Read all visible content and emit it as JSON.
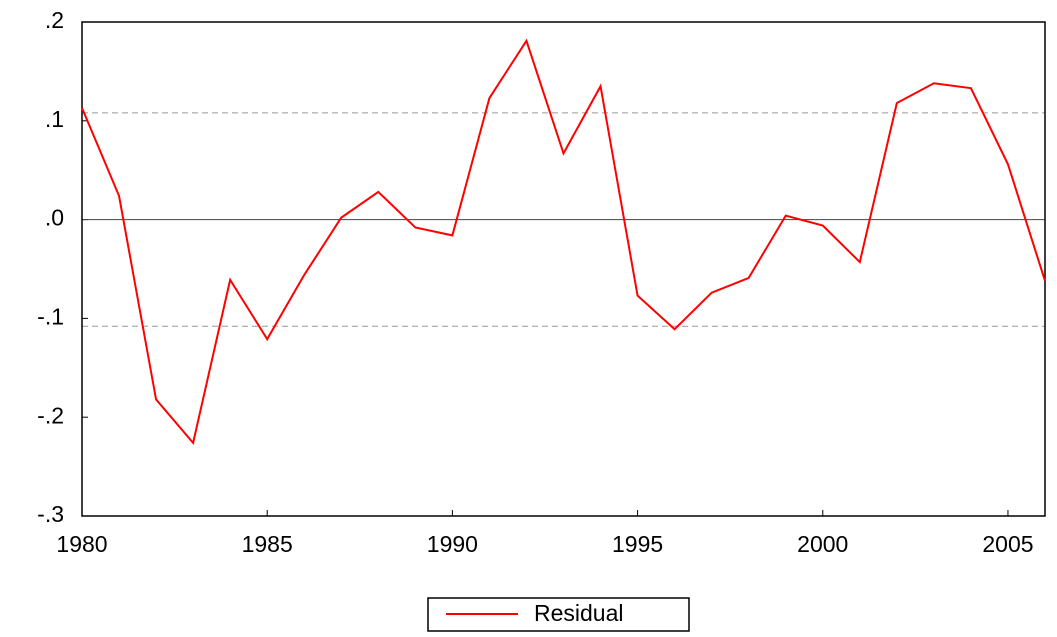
{
  "chart_data": {
    "type": "line",
    "x": [
      1980,
      1981,
      1982,
      1983,
      1984,
      1985,
      1986,
      1987,
      1988,
      1989,
      1990,
      1991,
      1992,
      1993,
      1994,
      1995,
      1996,
      1997,
      1998,
      1999,
      2000,
      2001,
      2002,
      2003,
      2004,
      2005,
      2006
    ],
    "series": [
      {
        "name": "Residual",
        "color": "#ff0000",
        "values": [
          0.113,
          0.024,
          -0.182,
          -0.226,
          -0.061,
          -0.121,
          -0.056,
          0.002,
          0.028,
          -0.008,
          -0.016,
          0.123,
          0.181,
          0.067,
          0.135,
          -0.077,
          -0.111,
          -0.074,
          -0.059,
          0.004,
          -0.006,
          -0.043,
          0.118,
          0.138,
          0.133,
          0.056,
          -0.062
        ]
      }
    ],
    "xlim": [
      1980,
      2006
    ],
    "xticks": [
      1980,
      1985,
      1990,
      1995,
      2000,
      2005
    ],
    "ylim": [
      -0.3,
      0.2
    ],
    "yticks": [
      {
        "value": -0.3,
        "label": "-.3"
      },
      {
        "value": -0.2,
        "label": "-.2"
      },
      {
        "value": -0.1,
        "label": "-.1"
      },
      {
        "value": 0,
        "label": ".0"
      },
      {
        "value": 0.1,
        "label": ".1"
      },
      {
        "value": 0.2,
        "label": ".2"
      }
    ],
    "reference_lines": [
      0.108,
      -0.108
    ],
    "legend": "bottom"
  }
}
